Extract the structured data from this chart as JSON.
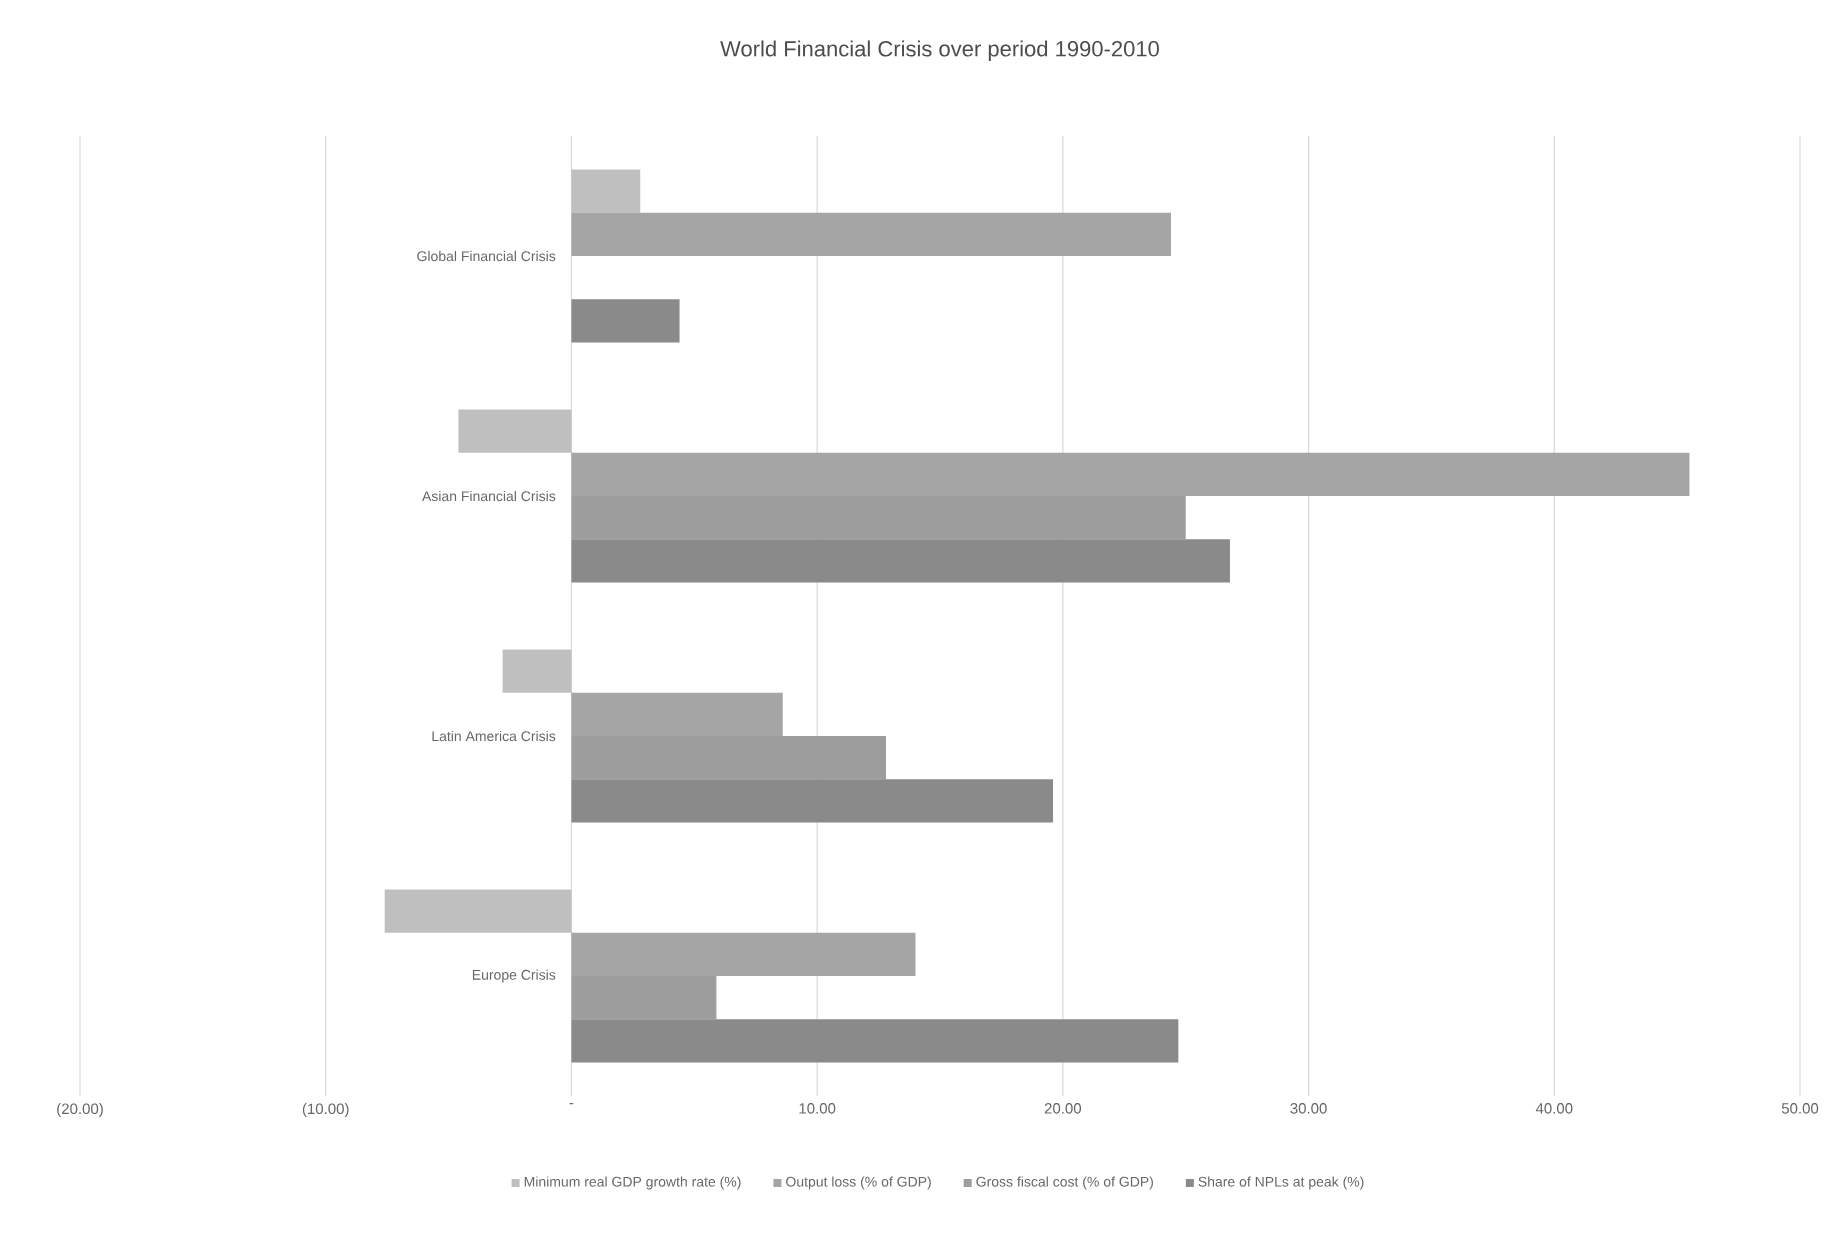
{
  "chart_data": {
    "type": "bar",
    "orientation": "horizontal",
    "title": "World Financial Crisis over period 1990-2010",
    "categories": [
      "Global Financial Crisis",
      "Asian Financial Crisis",
      "Latin America Crisis",
      "Europe Crisis"
    ],
    "series": [
      {
        "name": "Minimum real GDP growth rate (%)",
        "color": "#bfbfbf",
        "values": [
          2.8,
          -4.6,
          -2.8,
          -7.6
        ]
      },
      {
        "name": "Output loss (% of GDP)",
        "color": "#a5a5a5",
        "values": [
          24.4,
          45.5,
          8.6,
          14.0
        ]
      },
      {
        "name": "Gross fiscal cost (% of GDP)",
        "color": "#9d9d9d",
        "values": [
          null,
          25.0,
          12.8,
          5.9
        ]
      },
      {
        "name": "Share of NPLs at peak (%)",
        "color": "#8a8a8a",
        "values": [
          4.4,
          26.8,
          19.6,
          24.7
        ]
      }
    ],
    "xlim": [
      -20,
      50
    ],
    "xticks": [
      {
        "value": -20,
        "label": "(20.00)"
      },
      {
        "value": -10,
        "label": "(10.00)"
      },
      {
        "value": 0,
        "label": "-"
      },
      {
        "value": 10,
        "label": "10.00"
      },
      {
        "value": 20,
        "label": "20.00"
      },
      {
        "value": 30,
        "label": "30.00"
      },
      {
        "value": 40,
        "label": "40.00"
      },
      {
        "value": 50,
        "label": "50.00"
      }
    ],
    "grid": "x",
    "legend": "bottom"
  }
}
